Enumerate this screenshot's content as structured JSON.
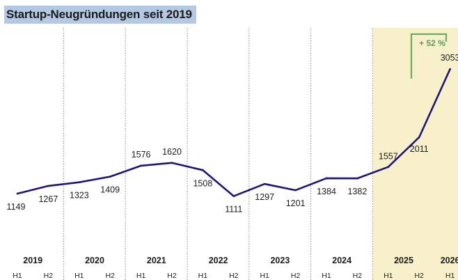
{
  "colors": {
    "line": "#1e157a",
    "title_highlight": "#b4c7e3",
    "forecast_band": "#f7f0cb",
    "growth_bracket": "#6aac63",
    "growth_text": "#5a9e52",
    "text": "#1b1b1b",
    "divider": "#6e6e6e"
  },
  "chart_data": {
    "type": "line",
    "title": "Startup-Neugründungen seit 2019",
    "years": [
      "2019",
      "2020",
      "2021",
      "2022",
      "2023",
      "2024",
      "2025",
      "2026"
    ],
    "x": [
      "2019 H1",
      "2019 H2",
      "2020 H1",
      "2020 H2",
      "2021 H1",
      "2021 H2",
      "2022 H1",
      "2022 H2",
      "2023 H1",
      "2023 H2",
      "2024 H1",
      "2024 H2",
      "2025 H1",
      "2025 H2",
      "2026 H1"
    ],
    "half_labels": [
      "H1",
      "H2",
      "H1",
      "H2",
      "H1",
      "H2",
      "H1",
      "H2",
      "H1",
      "H2",
      "H1",
      "H2",
      "H1",
      "H2",
      "H1"
    ],
    "series": [
      {
        "values": [
          1149,
          1267,
          1323,
          1409,
          1576,
          1620,
          1508,
          1111,
          1297,
          1201,
          1384,
          1382,
          1557,
          2011,
          3053
        ]
      }
    ],
    "value_labels": [
      "1149",
      "1267",
      "1323",
      "1409",
      "1576",
      "1620",
      "1508",
      "1111",
      "1297",
      "1201",
      "1384",
      "1382",
      "1557",
      "2011",
      "3053"
    ],
    "highlight_from": "2025 H1",
    "annotation": "+ 52 %",
    "grid": false,
    "legend": "none"
  }
}
